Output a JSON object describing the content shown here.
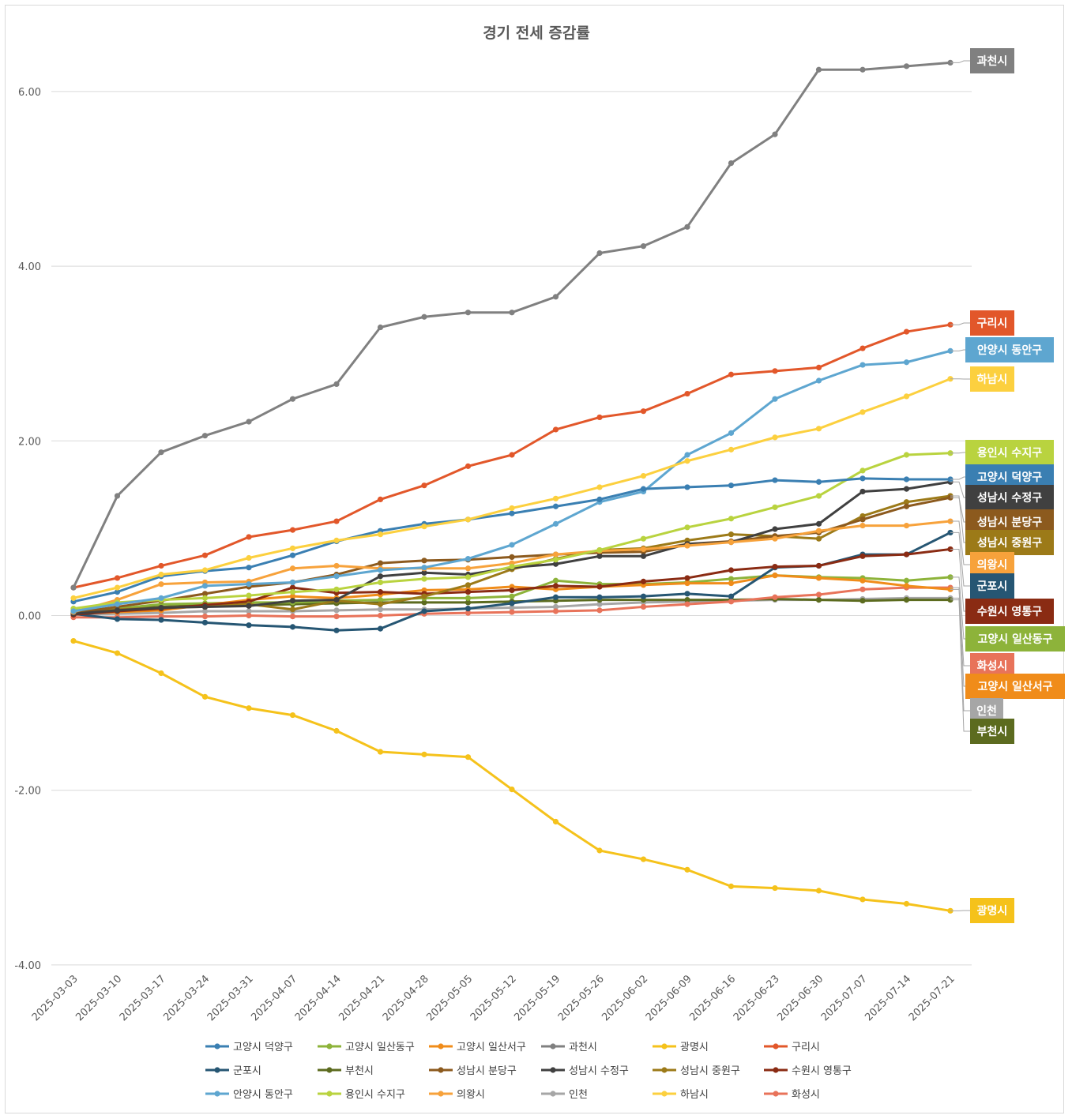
{
  "chart_data": {
    "type": "line",
    "title": "경기 전세 증감률",
    "xlabel": "",
    "ylabel": "",
    "ylim": [
      -4,
      6.6
    ],
    "yticks": [
      "6.00",
      "4.00",
      "2.00",
      "0.00",
      "-2.00",
      "-4.00"
    ],
    "ytick_values": [
      6,
      4,
      2,
      0,
      -2,
      -4
    ],
    "grid": true,
    "legend_position": "bottom",
    "x": [
      "2025-03-03",
      "2025-03-10",
      "2025-03-17",
      "2025-03-24",
      "2025-03-31",
      "2025-04-07",
      "2025-04-14",
      "2025-04-21",
      "2025-04-28",
      "2025-05-05",
      "2025-05-12",
      "2025-05-19",
      "2025-05-26",
      "2025-06-02",
      "2025-06-09",
      "2025-06-16",
      "2025-06-23",
      "2025-06-30",
      "2025-07-07",
      "2025-07-14",
      "2025-07-21"
    ],
    "series": [
      {
        "name": "고양시 덕양구",
        "color": "#3a7fb2",
        "values": [
          0.16,
          0.27,
          0.45,
          0.51,
          0.55,
          0.69,
          0.85,
          0.97,
          1.05,
          1.1,
          1.17,
          1.25,
          1.33,
          1.45,
          1.47,
          1.49,
          1.55,
          1.53,
          1.57,
          1.56,
          1.56
        ]
      },
      {
        "name": "고양시 일산동구",
        "color": "#8db33a",
        "values": [
          0.06,
          0.08,
          0.13,
          0.14,
          0.15,
          0.15,
          0.17,
          0.18,
          0.2,
          0.2,
          0.22,
          0.4,
          0.36,
          0.36,
          0.38,
          0.42,
          0.46,
          0.44,
          0.43,
          0.4,
          0.44
        ]
      },
      {
        "name": "고양시 일산서구",
        "color": "#f08c1a",
        "values": [
          0.02,
          0.04,
          0.06,
          0.12,
          0.18,
          0.22,
          0.2,
          0.24,
          0.29,
          0.3,
          0.33,
          0.3,
          0.33,
          0.35,
          0.37,
          0.37,
          0.46,
          0.43,
          0.4,
          0.34,
          0.3
        ]
      },
      {
        "name": "과천시",
        "color": "#808080",
        "values": [
          0.32,
          1.37,
          1.87,
          2.06,
          2.22,
          2.48,
          2.65,
          3.3,
          3.42,
          3.47,
          3.47,
          3.65,
          4.15,
          4.23,
          4.45,
          5.18,
          5.51,
          6.25,
          6.25,
          6.29,
          6.33
        ]
      },
      {
        "name": "광명시",
        "color": "#f5c21b",
        "values": [
          -0.29,
          -0.43,
          -0.66,
          -0.93,
          -1.06,
          -1.14,
          -1.32,
          -1.56,
          -1.59,
          -1.62,
          -1.99,
          -2.36,
          -2.69,
          -2.79,
          -2.91,
          -3.1,
          -3.12,
          -3.15,
          -3.25,
          -3.3,
          -3.38
        ]
      },
      {
        "name": "구리시",
        "color": "#e2572a",
        "values": [
          0.32,
          0.43,
          0.57,
          0.69,
          0.9,
          0.98,
          1.08,
          1.33,
          1.49,
          1.71,
          1.84,
          2.13,
          2.27,
          2.34,
          2.54,
          2.76,
          2.8,
          2.84,
          3.06,
          3.25,
          3.33
        ]
      },
      {
        "name": "군포시",
        "color": "#265673",
        "values": [
          0.02,
          -0.04,
          -0.05,
          -0.08,
          -0.11,
          -0.13,
          -0.17,
          -0.15,
          0.05,
          0.08,
          0.14,
          0.21,
          0.21,
          0.22,
          0.25,
          0.22,
          0.55,
          0.57,
          0.7,
          0.7,
          0.95
        ]
      },
      {
        "name": "부천시",
        "color": "#5c6b1f",
        "values": [
          0.05,
          0.08,
          0.1,
          0.12,
          0.12,
          0.13,
          0.14,
          0.15,
          0.15,
          0.15,
          0.16,
          0.17,
          0.18,
          0.18,
          0.18,
          0.18,
          0.19,
          0.18,
          0.17,
          0.18,
          0.18
        ]
      },
      {
        "name": "성남시 분당구",
        "color": "#8c5a1e",
        "values": [
          0.03,
          0.1,
          0.17,
          0.25,
          0.33,
          0.38,
          0.47,
          0.6,
          0.63,
          0.64,
          0.67,
          0.7,
          0.72,
          0.73,
          0.82,
          0.85,
          0.91,
          0.95,
          1.1,
          1.25,
          1.35
        ]
      },
      {
        "name": "성남시 수정구",
        "color": "#404040",
        "values": [
          0.02,
          0.06,
          0.09,
          0.1,
          0.11,
          0.17,
          0.18,
          0.45,
          0.49,
          0.47,
          0.55,
          0.59,
          0.68,
          0.68,
          0.82,
          0.84,
          0.99,
          1.05,
          1.42,
          1.45,
          1.53
        ]
      },
      {
        "name": "성남시 중원구",
        "color": "#9c7a18",
        "values": [
          0.03,
          0.07,
          0.09,
          0.1,
          0.13,
          0.07,
          0.17,
          0.13,
          0.22,
          0.35,
          0.53,
          0.65,
          0.75,
          0.77,
          0.86,
          0.93,
          0.91,
          0.88,
          1.14,
          1.3,
          1.37
        ]
      },
      {
        "name": "수원시 영통구",
        "color": "#8a2b13",
        "values": [
          0.01,
          0.05,
          0.08,
          0.12,
          0.16,
          0.32,
          0.26,
          0.27,
          0.25,
          0.27,
          0.29,
          0.34,
          0.33,
          0.39,
          0.43,
          0.52,
          0.56,
          0.57,
          0.68,
          0.7,
          0.76
        ]
      },
      {
        "name": "안양시 동안구",
        "color": "#5ea6d0",
        "values": [
          0.05,
          0.13,
          0.2,
          0.34,
          0.36,
          0.38,
          0.45,
          0.52,
          0.55,
          0.65,
          0.81,
          1.05,
          1.3,
          1.42,
          1.84,
          2.09,
          2.48,
          2.69,
          2.87,
          2.9,
          3.03
        ]
      },
      {
        "name": "용인시 수지구",
        "color": "#b9d33f",
        "values": [
          0.08,
          0.15,
          0.18,
          0.2,
          0.23,
          0.27,
          0.3,
          0.38,
          0.42,
          0.44,
          0.56,
          0.64,
          0.75,
          0.88,
          1.01,
          1.11,
          1.24,
          1.37,
          1.66,
          1.84,
          1.86
        ]
      },
      {
        "name": "의왕시",
        "color": "#f7a23b",
        "values": [
          0.04,
          0.18,
          0.36,
          0.38,
          0.39,
          0.54,
          0.57,
          0.54,
          0.54,
          0.54,
          0.6,
          0.7,
          0.74,
          0.76,
          0.8,
          0.84,
          0.88,
          0.97,
          1.03,
          1.03,
          1.08
        ]
      },
      {
        "name": "인천",
        "color": "#a6a6a6",
        "values": [
          0.01,
          0.02,
          0.03,
          0.05,
          0.05,
          0.05,
          0.06,
          0.07,
          0.07,
          0.08,
          0.09,
          0.1,
          0.13,
          0.15,
          0.16,
          0.17,
          0.18,
          0.18,
          0.19,
          0.2,
          0.2
        ]
      },
      {
        "name": "하남시",
        "color": "#fcd03f",
        "values": [
          0.2,
          0.32,
          0.47,
          0.52,
          0.66,
          0.77,
          0.86,
          0.93,
          1.02,
          1.1,
          1.23,
          1.34,
          1.47,
          1.6,
          1.77,
          1.9,
          2.04,
          2.14,
          2.33,
          2.51,
          2.71
        ]
      },
      {
        "name": "화성시",
        "color": "#e8735a",
        "values": [
          -0.02,
          -0.02,
          -0.01,
          -0.01,
          0.0,
          -0.01,
          -0.01,
          0.0,
          0.02,
          0.03,
          0.04,
          0.05,
          0.06,
          0.1,
          0.13,
          0.16,
          0.21,
          0.24,
          0.3,
          0.32,
          0.32
        ]
      }
    ],
    "end_labels": [
      {
        "series": "과천시",
        "text": "과천시",
        "color": "#808080"
      },
      {
        "series": "구리시",
        "text": "구리시",
        "color": "#e2572a"
      },
      {
        "series": "안양시 동안구",
        "text": "안양시 동안구",
        "color": "#5ea6d0"
      },
      {
        "series": "하남시",
        "text": "하남시",
        "color": "#fcd03f"
      },
      {
        "series": "용인시 수지구",
        "text": "용인시 수지구",
        "color": "#b9d33f"
      },
      {
        "series": "고양시 덕양구",
        "text": "고양시 덕양구",
        "color": "#3a7fb2"
      },
      {
        "series": "성남시 수정구",
        "text": "성남시 수정구",
        "color": "#404040"
      },
      {
        "series": "성남시 분당구",
        "text": "성남시 분당구",
        "color": "#8c5a1e"
      },
      {
        "series": "성남시 중원구",
        "text": "성남시 중원구",
        "color": "#9c7a18"
      },
      {
        "series": "의왕시",
        "text": "의왕시",
        "color": "#f7a23b"
      },
      {
        "series": "군포시",
        "text": "군포시",
        "color": "#265673"
      },
      {
        "series": "수원시 영통구",
        "text": "수원시 영통구",
        "color": "#8a2b13"
      },
      {
        "series": "고양시 일산동구",
        "text": "고양시 일산동구",
        "color": "#8db33a"
      },
      {
        "series": "화성시",
        "text": "화성시",
        "color": "#e8735a"
      },
      {
        "series": "고양시 일산서구",
        "text": "고양시 일산서구",
        "color": "#f08c1a"
      },
      {
        "series": "인천",
        "text": "인천",
        "color": "#a6a6a6"
      },
      {
        "series": "부천시",
        "text": "부천시",
        "color": "#5c6b1f"
      },
      {
        "series": "광명시",
        "text": "광명시",
        "color": "#f5c21b"
      }
    ]
  }
}
